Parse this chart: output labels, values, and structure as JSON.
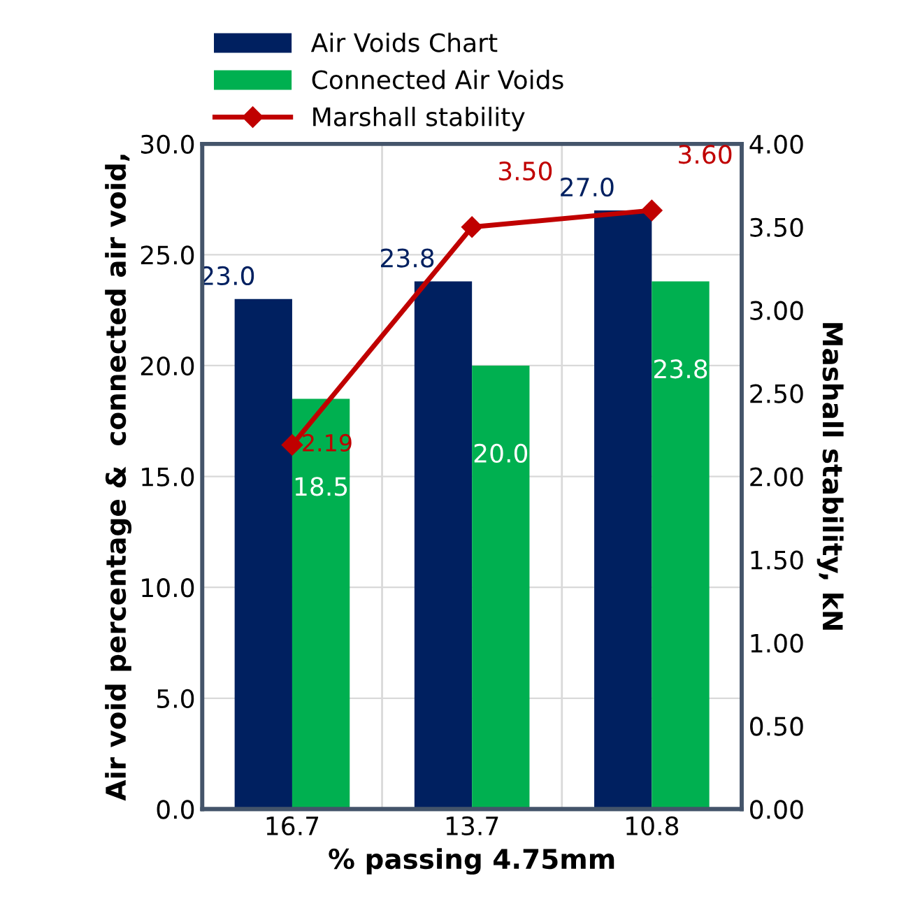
{
  "chart_data": {
    "type": "bar",
    "xlabel": "% passing 4.75mm",
    "ylabel": "Air void percentage &  connected air void,",
    "y2label": "Mashall stability, kN",
    "categories": [
      "16.7",
      "13.7",
      "10.8"
    ],
    "series": [
      {
        "name": "Air Voids Chart",
        "color": "#002060",
        "values": [
          23.0,
          23.8,
          27.0
        ],
        "value_labels": [
          "23.0",
          "23.8",
          "27.0"
        ]
      },
      {
        "name": "Connected Air Voids",
        "color": "#00b050",
        "values": [
          18.5,
          20.0,
          23.8
        ],
        "value_labels": [
          "18.5",
          "20.0",
          "23.8"
        ]
      },
      {
        "name": "Marshall stability",
        "type": "line",
        "axis": "y2",
        "color": "#c00000",
        "marker": "diamond",
        "values": [
          2.19,
          3.5,
          3.6
        ],
        "value_labels": [
          "2.19",
          "3.50",
          "3.60"
        ]
      }
    ],
    "ylim": [
      0,
      30
    ],
    "yticks": [
      {
        "value": 0,
        "label": "0.0"
      },
      {
        "value": 5,
        "label": "5.0"
      },
      {
        "value": 10,
        "label": "10.0"
      },
      {
        "value": 15,
        "label": "15.0"
      },
      {
        "value": 20,
        "label": "20.0"
      },
      {
        "value": 25,
        "label": "25.0"
      },
      {
        "value": 30,
        "label": "30.0"
      }
    ],
    "y2lim": [
      0,
      4
    ],
    "y2ticks": [
      {
        "value": 0,
        "label": "0.00"
      },
      {
        "value": 0.5,
        "label": "0.50"
      },
      {
        "value": 1,
        "label": "1.00"
      },
      {
        "value": 1.5,
        "label": "1.50"
      },
      {
        "value": 2,
        "label": "2.00"
      },
      {
        "value": 2.5,
        "label": "2.50"
      },
      {
        "value": 3,
        "label": "3.00"
      },
      {
        "value": 3.5,
        "label": "3.50"
      },
      {
        "value": 4,
        "label": "4.00"
      }
    ],
    "grid": true,
    "legend": "top left"
  }
}
